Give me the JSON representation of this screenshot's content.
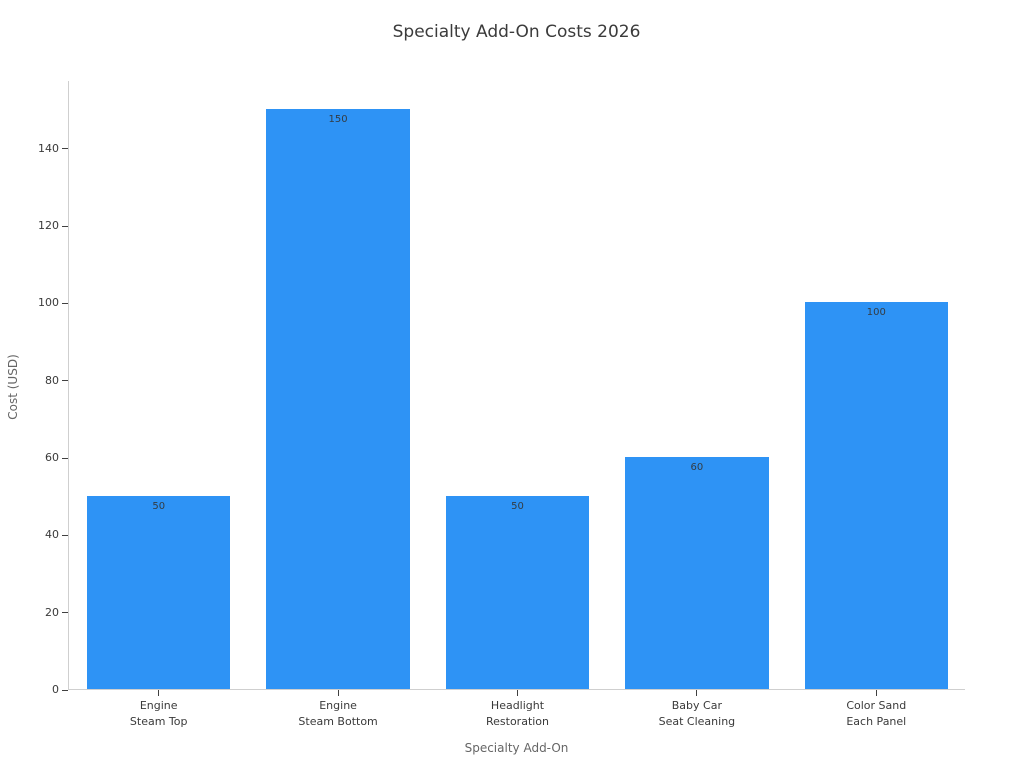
{
  "chart_data": {
    "type": "bar",
    "title": "Specialty Add-On Costs 2026",
    "xlabel": "Specialty Add-On",
    "ylabel": "Cost (USD)",
    "categories": [
      [
        "Engine",
        "Steam Top"
      ],
      [
        "Engine",
        "Steam Bottom"
      ],
      [
        "Headlight",
        "Restoration"
      ],
      [
        "Baby Car",
        "Seat Cleaning"
      ],
      [
        "Color Sand",
        "Each Panel"
      ]
    ],
    "values": [
      50,
      150,
      50,
      60,
      100
    ],
    "bar_labels": [
      "50",
      "150",
      "50",
      "60",
      "100"
    ],
    "yticks": [
      0,
      20,
      40,
      60,
      80,
      100,
      120,
      140
    ],
    "ylim": [
      0,
      157.5
    ],
    "grid": false,
    "legend_position": "none",
    "colors": {
      "bar": "#2E93F5",
      "bar_label_text": "#333c44",
      "tick_label_text": "#3a3a3a",
      "axis_label_text": "#666666",
      "title_text": "#3b3b3b",
      "spine": "#cfcfcf"
    }
  }
}
